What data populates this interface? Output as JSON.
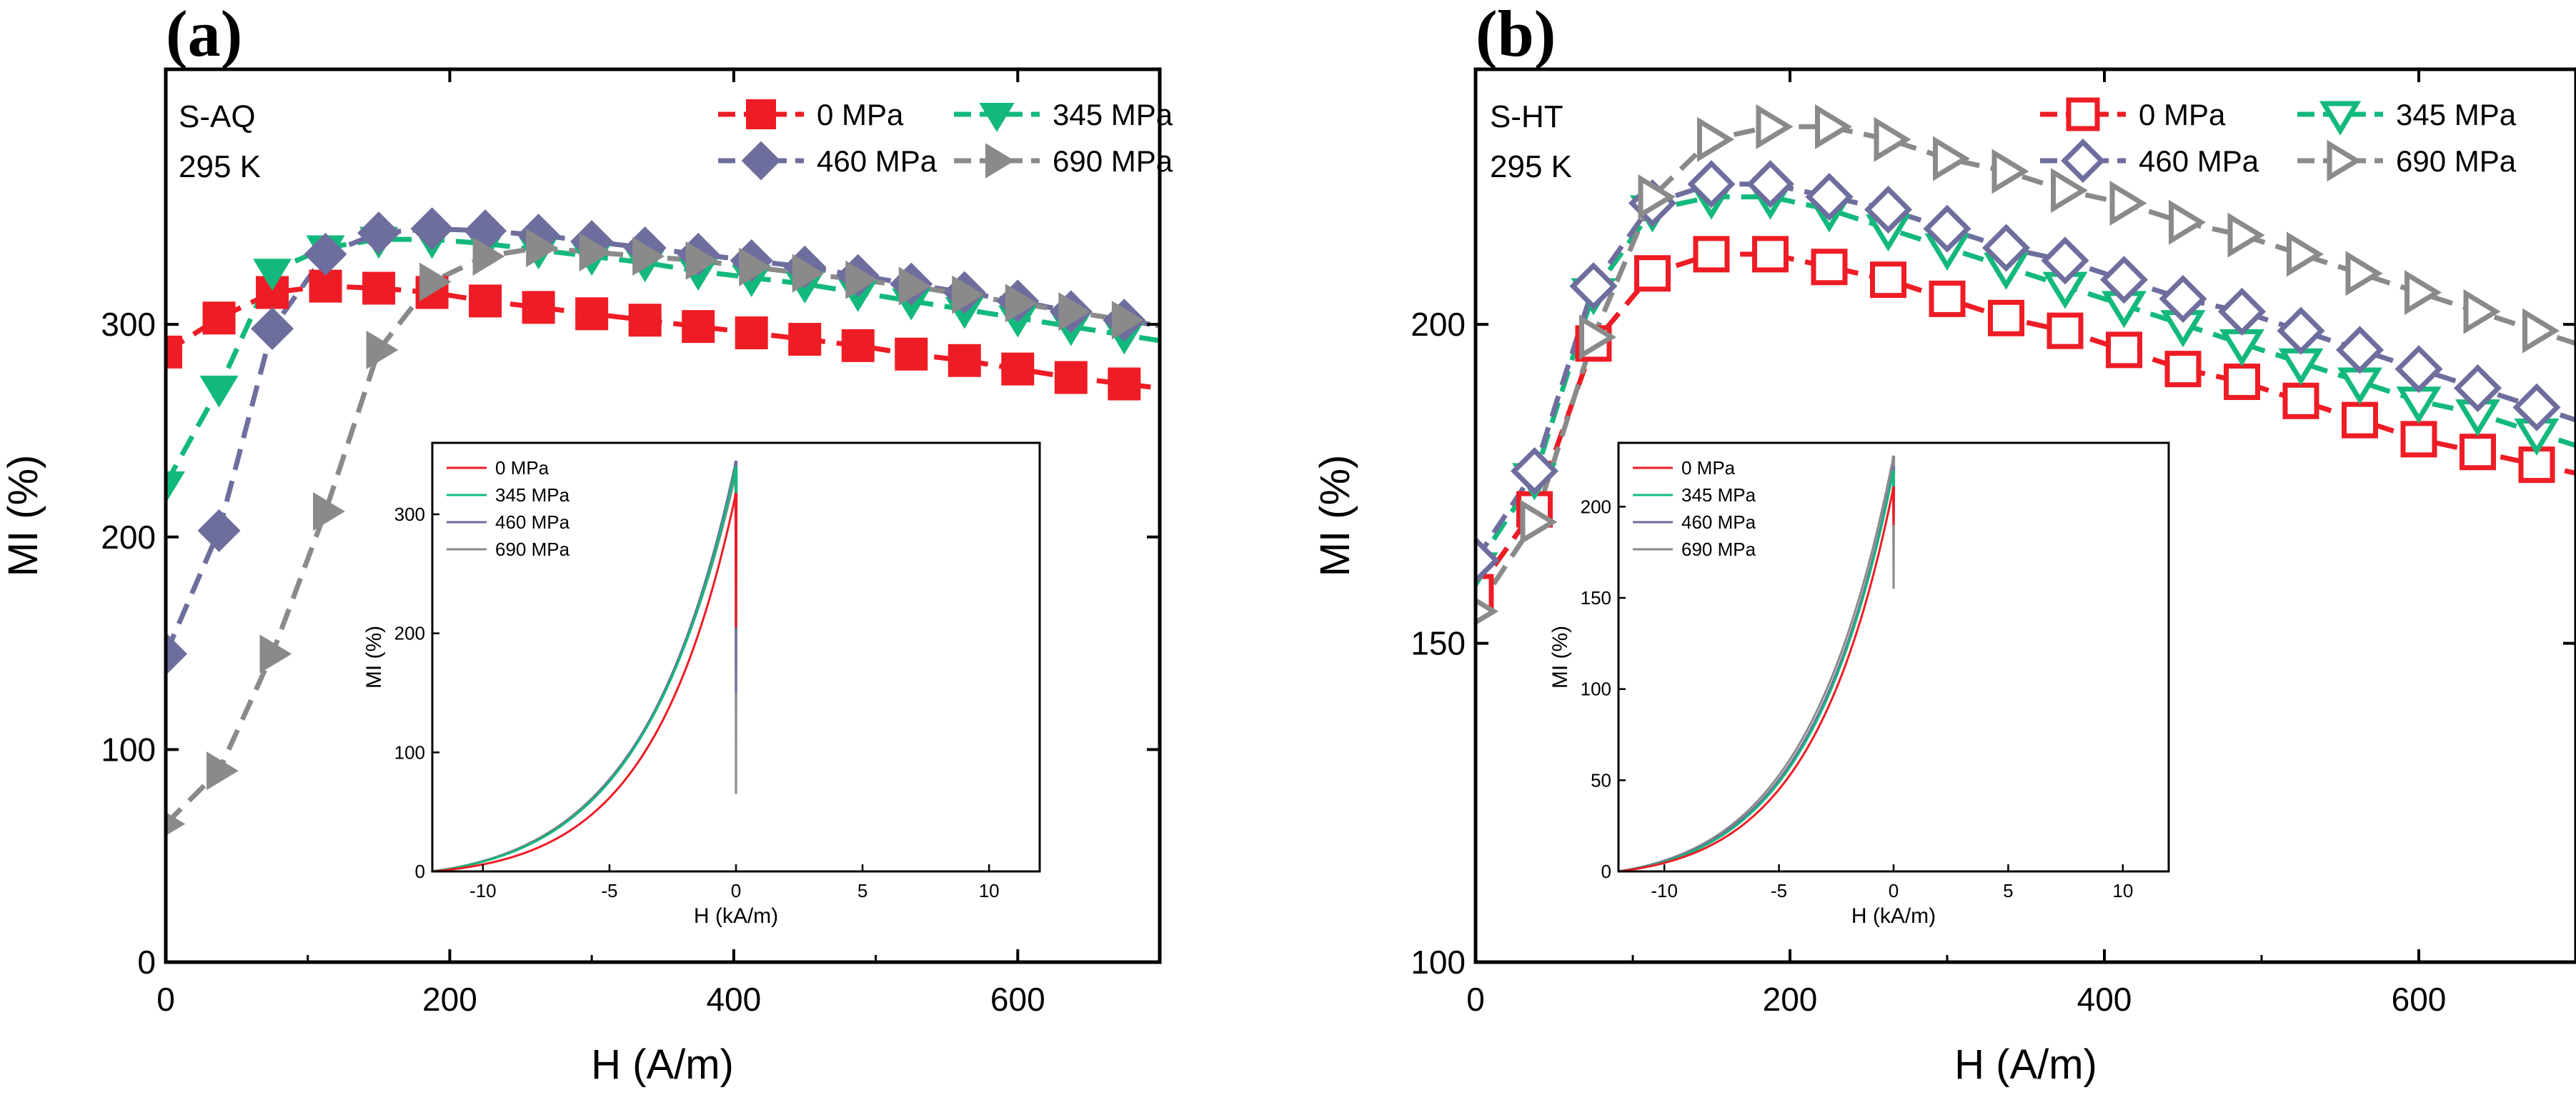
{
  "figure": {
    "panels": [
      "(a)",
      "(b)"
    ]
  },
  "colors": {
    "s0": "#ee1c25",
    "s345": "#13b97c",
    "s460": "#6e6e9e",
    "s690": "#8a8a8a",
    "axis": "#000000"
  },
  "chart_data": [
    {
      "panel": "(a)",
      "type": "line",
      "annotation": [
        "S-AQ",
        "295 K"
      ],
      "xlabel": "H (A/m)",
      "ylabel": "MI (%)",
      "xlim": [
        0,
        700
      ],
      "ylim": [
        0,
        420
      ],
      "xticks": [
        "0",
        "200",
        "400",
        "600"
      ],
      "xtick_values": [
        0,
        200,
        400,
        600
      ],
      "yticks": [
        "0",
        "100",
        "200",
        "300"
      ],
      "ytick_values": [
        0,
        100,
        200,
        300
      ],
      "legend_position": "top-right",
      "x": [
        0,
        37.5,
        75,
        112.5,
        150,
        187.5,
        225,
        262.5,
        300,
        337.5,
        375,
        412.5,
        450,
        487.5,
        525,
        562.5,
        600,
        637.5,
        675
      ],
      "series": [
        {
          "name": "0 MPa",
          "color_key": "s0",
          "marker": "square",
          "filled": true,
          "values": [
            287,
            303,
            315,
            318,
            317,
            315,
            311,
            308,
            305,
            302,
            299,
            296,
            293,
            290,
            286,
            283,
            279,
            275,
            272
          ]
        },
        {
          "name": "345 MPa",
          "color_key": "s345",
          "marker": "triangle-down",
          "filled": true,
          "values": [
            225,
            270,
            325,
            336,
            340,
            340,
            338,
            335,
            332,
            329,
            325,
            322,
            319,
            315,
            311,
            307,
            303,
            299,
            295
          ]
        },
        {
          "name": "460 MPa",
          "color_key": "s460",
          "marker": "diamond",
          "filled": true,
          "values": [
            145,
            203,
            298,
            333,
            343,
            345,
            344,
            342,
            339,
            336,
            333,
            330,
            327,
            323,
            319,
            315,
            311,
            306,
            302
          ]
        },
        {
          "name": "690 MPa",
          "color_key": "s690",
          "marker": "triangle-right",
          "filled": true,
          "values": [
            65,
            90,
            145,
            212,
            288,
            320,
            332,
            336,
            334,
            332,
            330,
            327,
            324,
            321,
            318,
            314,
            310,
            306,
            302
          ]
        }
      ],
      "inset": {
        "xlabel": "H (kA/m)",
        "ylabel": "MI (%)",
        "xlim": [
          -12,
          12
        ],
        "ylim": [
          0,
          360
        ],
        "xticks": [
          "-10",
          "-5",
          "0",
          "5",
          "10"
        ],
        "xtick_values": [
          -10,
          -5,
          0,
          5,
          10
        ],
        "yticks": [
          "0",
          "100",
          "200",
          "300"
        ],
        "ytick_values": [
          0,
          100,
          200,
          300
        ],
        "legend_position": "top-left",
        "series": [
          {
            "name": "0 MPa",
            "color_key": "s0",
            "peak": 318,
            "decay": 3.2,
            "dip": 205
          },
          {
            "name": "345 MPa",
            "color_key": "s345",
            "peak": 340,
            "decay": 3.5,
            "dip": 240
          },
          {
            "name": "460 MPa",
            "color_key": "s460",
            "peak": 345,
            "decay": 3.5,
            "dip": 150
          },
          {
            "name": "690 MPa",
            "color_key": "s690",
            "peak": 335,
            "decay": 3.6,
            "dip": 65
          }
        ]
      }
    },
    {
      "panel": "(b)",
      "type": "line",
      "annotation": [
        "S-HT",
        "295 K"
      ],
      "xlabel": "H (A/m)",
      "ylabel": "MI (%)",
      "xlim": [
        0,
        700
      ],
      "ylim": [
        100,
        240
      ],
      "xticks": [
        "0",
        "200",
        "400",
        "600"
      ],
      "xtick_values": [
        0,
        200,
        400,
        600
      ],
      "yticks": [
        "100",
        "150",
        "200"
      ],
      "ytick_values": [
        100,
        150,
        200
      ],
      "legend_position": "top-right",
      "x": [
        0,
        37.5,
        75,
        112.5,
        150,
        187.5,
        225,
        262.5,
        300,
        337.5,
        375,
        412.5,
        450,
        487.5,
        525,
        562.5,
        600,
        637.5,
        675
      ],
      "series": [
        {
          "name": "0 MPa",
          "color_key": "s0",
          "marker": "square",
          "filled": false,
          "values": [
            158,
            171,
            197,
            208,
            211,
            211,
            209,
            207,
            204,
            201,
            199,
            196,
            193,
            191,
            188,
            185,
            182,
            180,
            178
          ]
        },
        {
          "name": "345 MPa",
          "color_key": "s345",
          "marker": "triangle-down",
          "filled": false,
          "values": [
            162,
            176,
            205,
            218,
            220,
            220,
            218,
            215,
            212,
            209,
            206,
            203,
            200,
            197,
            194,
            191,
            188,
            186,
            183
          ]
        },
        {
          "name": "460 MPa",
          "color_key": "s460",
          "marker": "diamond",
          "filled": false,
          "values": [
            163,
            177,
            206,
            219,
            222,
            222,
            220,
            218,
            215,
            212,
            210,
            207,
            204,
            202,
            199,
            196,
            193,
            190,
            187
          ]
        },
        {
          "name": "690 MPa",
          "color_key": "s690",
          "marker": "triangle-right",
          "filled": false,
          "values": [
            155,
            169,
            198,
            220,
            229,
            231,
            231,
            229,
            226,
            224,
            221,
            219,
            216,
            214,
            211,
            208,
            205,
            202,
            199
          ]
        }
      ],
      "inset": {
        "xlabel": "H (kA/m)",
        "ylabel": "MI (%)",
        "xlim": [
          -12,
          12
        ],
        "ylim": [
          0,
          235
        ],
        "xticks": [
          "-10",
          "-5",
          "0",
          "5",
          "10"
        ],
        "xtick_values": [
          -10,
          -5,
          0,
          5,
          10
        ],
        "yticks": [
          "0",
          "50",
          "100",
          "150",
          "200"
        ],
        "ytick_values": [
          0,
          50,
          100,
          150,
          200
        ],
        "legend_position": "top-left",
        "series": [
          {
            "name": "0 MPa",
            "color_key": "s0",
            "peak": 211,
            "decay": 3.4,
            "dip": 190
          },
          {
            "name": "345 MPa",
            "color_key": "s345",
            "peak": 220,
            "decay": 3.5,
            "dip": 195
          },
          {
            "name": "460 MPa",
            "color_key": "s460",
            "peak": 222,
            "decay": 3.55,
            "dip": 200
          },
          {
            "name": "690 MPa",
            "color_key": "s690",
            "peak": 228,
            "decay": 3.6,
            "dip": 155
          }
        ]
      }
    }
  ]
}
